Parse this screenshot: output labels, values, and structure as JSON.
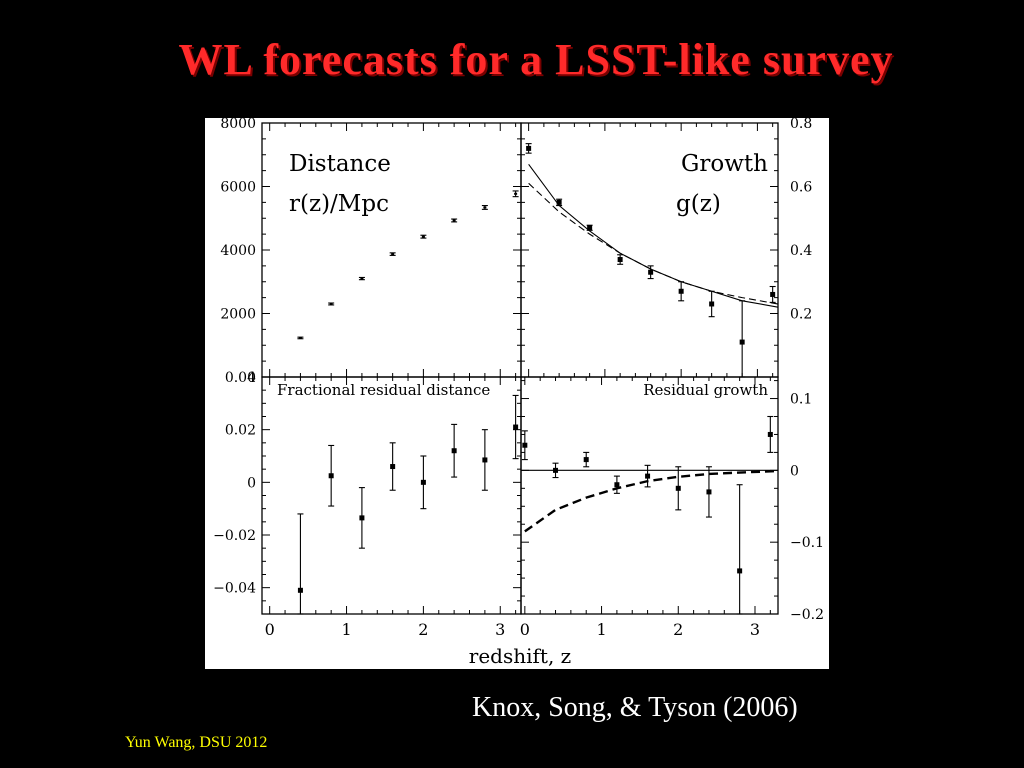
{
  "slide": {
    "title": "WL forecasts for a LSST-like survey",
    "citation": "Knox, Song, & Tyson (2006)",
    "credit": "Yun Wang, DSU 2012"
  },
  "colors": {
    "title": "#ff2a2a",
    "credit": "#ffff00",
    "background": "#000000",
    "figure_bg": "#ffffff"
  },
  "figure": {
    "shared_xlabel": "redshift, z"
  },
  "chart_data": [
    {
      "id": "distance",
      "type": "scatter",
      "label_lines": [
        "Distance",
        "r(z)/Mpc"
      ],
      "xlim": [
        -0.1,
        3.27
      ],
      "ylim": [
        0,
        8000
      ],
      "yticks": [
        0,
        2000,
        4000,
        6000,
        8000
      ],
      "ytick_labels": [
        "0",
        "2000",
        "4000",
        "6000",
        "8000"
      ],
      "x": [
        0.4,
        0.8,
        1.2,
        1.6,
        2.0,
        2.4,
        2.8,
        3.2
      ],
      "y": [
        1230,
        2300,
        3100,
        3870,
        4420,
        4930,
        5340,
        5770
      ],
      "yerr": [
        25,
        30,
        35,
        40,
        45,
        45,
        60,
        90
      ]
    },
    {
      "id": "growth",
      "type": "scatter",
      "label_lines": [
        "Growth",
        "g(z)"
      ],
      "xlim": [
        -0.1,
        3.27
      ],
      "ylim": [
        0.0,
        0.8
      ],
      "yticks": [
        0.2,
        0.4,
        0.6,
        0.8
      ],
      "ytick_labels": [
        "0.2",
        "0.4",
        "0.6",
        "0.8"
      ],
      "x": [
        0.0,
        0.4,
        0.8,
        1.2,
        1.6,
        2.0,
        2.4,
        2.8,
        3.2
      ],
      "y": [
        0.72,
        0.55,
        0.47,
        0.37,
        0.33,
        0.27,
        0.23,
        0.11,
        0.26
      ],
      "yerr": [
        0.015,
        0.01,
        0.008,
        0.015,
        0.02,
        0.03,
        0.04,
        0.13,
        0.025
      ],
      "curves": [
        {
          "style": "solid",
          "x": [
            0.0,
            0.4,
            0.8,
            1.2,
            1.6,
            2.0,
            2.4,
            2.8,
            3.27
          ],
          "y": [
            0.67,
            0.54,
            0.46,
            0.39,
            0.34,
            0.3,
            0.27,
            0.24,
            0.22
          ]
        },
        {
          "style": "dashed",
          "x": [
            0.0,
            0.4,
            0.8,
            1.2,
            1.6,
            2.0,
            2.4,
            2.8,
            3.27
          ],
          "y": [
            0.61,
            0.52,
            0.45,
            0.39,
            0.34,
            0.3,
            0.27,
            0.25,
            0.23
          ]
        }
      ]
    },
    {
      "id": "residual-distance",
      "type": "scatter",
      "label_lines": [
        "Fractional residual distance"
      ],
      "xlim": [
        -0.1,
        3.27
      ],
      "ylim": [
        -0.05,
        0.04
      ],
      "yticks": [
        -0.04,
        -0.02,
        0,
        0.02,
        0.04
      ],
      "ytick_labels": [
        "−0.04",
        "−0.02",
        "0",
        "0.02",
        "0.04"
      ],
      "x": [
        0.4,
        0.8,
        1.2,
        1.6,
        2.0,
        2.4,
        2.8,
        3.2
      ],
      "y": [
        -0.041,
        0.0025,
        -0.0135,
        0.006,
        0.0,
        0.012,
        0.0085,
        0.021
      ],
      "yerr": [
        0.029,
        0.0115,
        0.0115,
        0.009,
        0.01,
        0.01,
        0.0115,
        0.012
      ],
      "xticks": [
        0,
        1,
        2,
        3
      ],
      "xtick_labels": [
        "0",
        "1",
        "2",
        "3"
      ]
    },
    {
      "id": "residual-growth",
      "type": "scatter",
      "label_lines": [
        "Residual growth"
      ],
      "xlim": [
        -0.05,
        3.3
      ],
      "ylim": [
        -0.2,
        0.13
      ],
      "yticks": [
        -0.2,
        -0.1,
        0,
        0.1
      ],
      "ytick_labels": [
        "−0.2",
        "−0.1",
        "0",
        "0.1"
      ],
      "x": [
        0.0,
        0.4,
        0.8,
        1.2,
        1.6,
        2.0,
        2.4,
        2.8,
        3.2
      ],
      "y": [
        0.035,
        0.0,
        0.015,
        -0.02,
        -0.008,
        -0.025,
        -0.03,
        -0.14,
        0.05
      ],
      "yerr": [
        0.02,
        0.01,
        0.01,
        0.012,
        0.015,
        0.03,
        0.035,
        0.12,
        0.025
      ],
      "curves": [
        {
          "style": "solid",
          "x": [
            -0.05,
            3.3
          ],
          "y": [
            0.0,
            0.0
          ]
        },
        {
          "style": "bold-dashed",
          "x": [
            0.0,
            0.4,
            0.8,
            1.2,
            1.6,
            2.0,
            2.4,
            2.8,
            3.3
          ],
          "y": [
            -0.085,
            -0.055,
            -0.038,
            -0.025,
            -0.015,
            -0.009,
            -0.005,
            -0.003,
            -0.001
          ]
        }
      ],
      "xticks": [
        0,
        1,
        2,
        3
      ],
      "xtick_labels": [
        "0",
        "1",
        "2",
        "3"
      ]
    }
  ]
}
